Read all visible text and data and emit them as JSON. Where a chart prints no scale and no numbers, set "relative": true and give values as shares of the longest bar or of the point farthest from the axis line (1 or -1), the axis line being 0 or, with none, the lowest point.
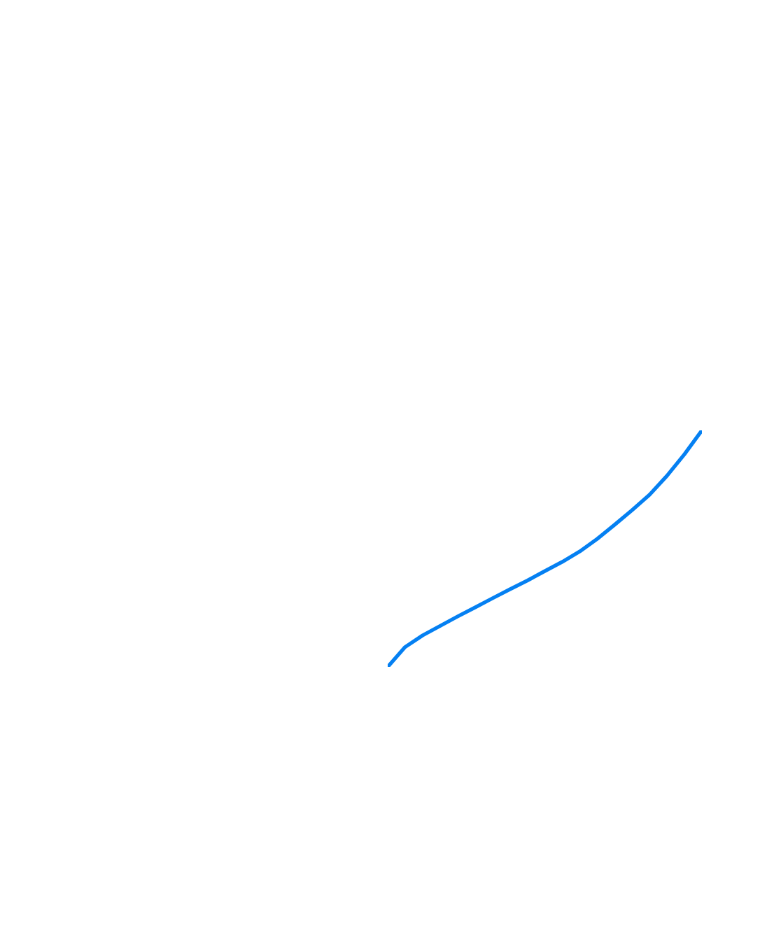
{
  "chart_data": {
    "type": "line",
    "relative": true,
    "categories": [
      null,
      null,
      null,
      null,
      null,
      null,
      null,
      null,
      null,
      null,
      null,
      null,
      null,
      null,
      null,
      null,
      null,
      null,
      null
    ],
    "series": [
      {
        "color": "#0580f2",
        "values": [
          0,
          0.084,
          0.133,
          0.173,
          0.213,
          0.251,
          0.29,
          0.328,
          0.365,
          0.405,
          0.444,
          0.488,
          0.541,
          0.601,
          0.663,
          0.728,
          0.808,
          0.899,
          1
        ]
      }
    ],
    "grid": false,
    "legend": false,
    "marker": "none",
    "line_style": "solid"
  }
}
